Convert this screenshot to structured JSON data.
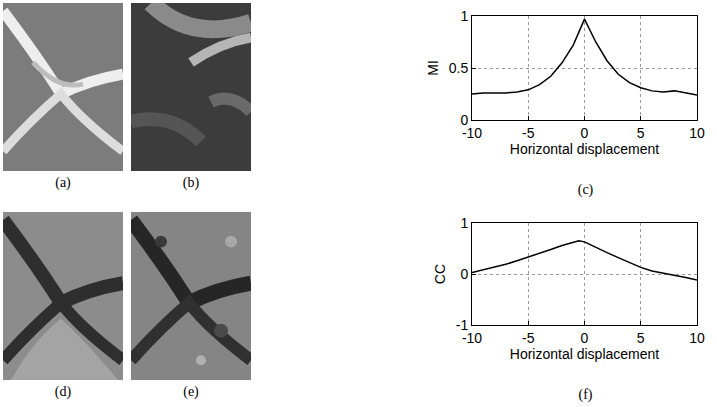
{
  "images": [
    {
      "caption": "(a)"
    },
    {
      "caption": "(b)"
    },
    {
      "caption": "(d)"
    },
    {
      "caption": "(e)"
    }
  ],
  "chart_data": [
    {
      "type": "line",
      "caption": "(c)",
      "ylabel": "MI",
      "xlabel": "Horizontal displacement",
      "x": [
        -10,
        -9,
        -8,
        -7,
        -6,
        -5,
        -4,
        -3,
        -2,
        -1,
        0,
        1,
        2,
        3,
        4,
        5,
        6,
        7,
        8,
        9,
        10
      ],
      "values": [
        0.25,
        0.26,
        0.26,
        0.26,
        0.27,
        0.29,
        0.34,
        0.42,
        0.55,
        0.72,
        0.97,
        0.75,
        0.57,
        0.44,
        0.36,
        0.31,
        0.28,
        0.27,
        0.28,
        0.26,
        0.24
      ],
      "color": "#000000",
      "xlim": [
        -10,
        10
      ],
      "ylim": [
        0,
        1
      ],
      "xticks": [
        -10,
        -5,
        0,
        5,
        10
      ],
      "yticks": [
        0,
        0.5,
        1
      ],
      "grid": true
    },
    {
      "type": "line",
      "caption": "(f)",
      "ylabel": "CC",
      "xlabel": "Horizontal displacement",
      "x": [
        -10,
        -9,
        -8,
        -7,
        -6,
        -5,
        -4,
        -3,
        -2,
        -1,
        -0.5,
        0,
        1,
        2,
        3,
        4,
        5,
        6,
        7,
        8,
        9,
        10
      ],
      "values": [
        0.03,
        0.08,
        0.13,
        0.19,
        0.26,
        0.33,
        0.41,
        0.48,
        0.56,
        0.62,
        0.65,
        0.63,
        0.52,
        0.42,
        0.32,
        0.22,
        0.13,
        0.06,
        0.02,
        -0.03,
        -0.07,
        -0.12
      ],
      "color": "#000000",
      "xlim": [
        -10,
        10
      ],
      "ylim": [
        -1,
        1
      ],
      "xticks": [
        -10,
        -5,
        0,
        5,
        10
      ],
      "yticks": [
        -1,
        0,
        1
      ],
      "grid": true
    }
  ]
}
